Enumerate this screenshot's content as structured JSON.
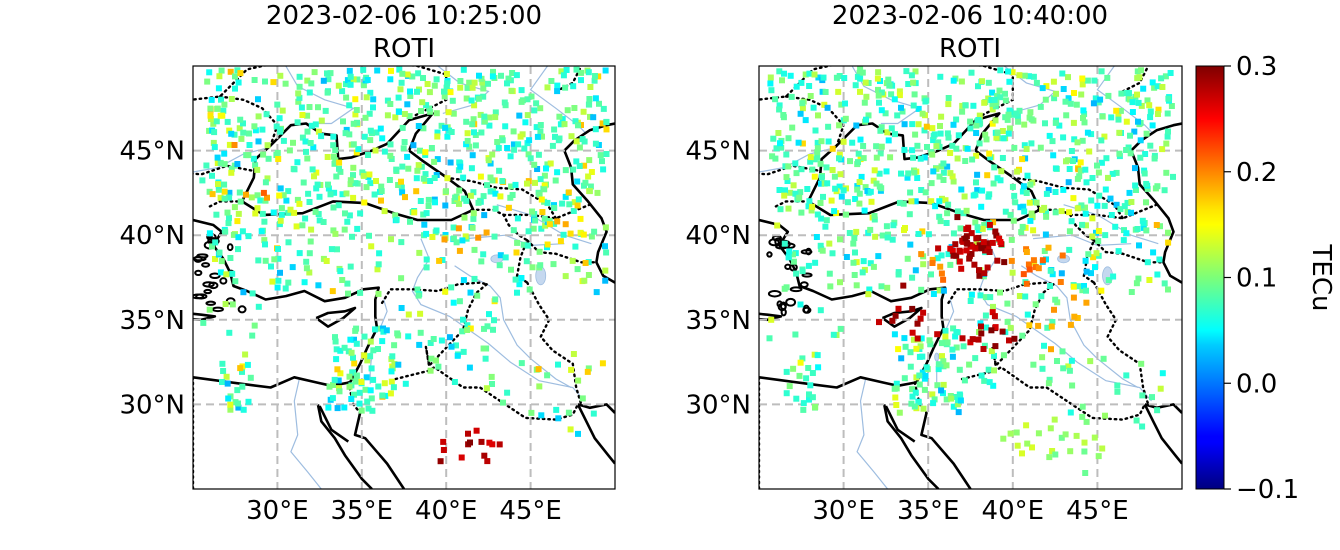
{
  "panels": [
    {
      "title_line1": "2023-02-06 10:25:00",
      "title_line2": "ROTI",
      "seed": 11,
      "hot_clusters": [
        {
          "lon": 41.6,
          "lat": 27.0,
          "n": 14,
          "value": 0.3
        },
        {
          "lon": 28.4,
          "lat": 42.8,
          "n": 4,
          "value": 0.22
        },
        {
          "lon": 46.5,
          "lat": 40.2,
          "n": 12,
          "value": 0.19
        },
        {
          "lon": 41.0,
          "lat": 39.8,
          "n": 6,
          "value": 0.2
        }
      ]
    },
    {
      "title_line1": "2023-02-06 10:40:00",
      "title_line2": "ROTI",
      "seed": 29,
      "hot_clusters": [
        {
          "lon": 37.6,
          "lat": 39.2,
          "n": 55,
          "value": 0.3
        },
        {
          "lon": 34.0,
          "lat": 35.2,
          "n": 12,
          "value": 0.3
        },
        {
          "lon": 38.4,
          "lat": 34.2,
          "n": 16,
          "value": 0.3
        },
        {
          "lon": 41.2,
          "lat": 38.2,
          "n": 14,
          "value": 0.22
        },
        {
          "lon": 43.0,
          "lat": 35.0,
          "n": 10,
          "value": 0.2
        },
        {
          "lon": 35.5,
          "lat": 38.2,
          "n": 6,
          "value": 0.22
        },
        {
          "lon": 41.0,
          "lat": 28.0,
          "n": 12,
          "value": 0.14
        },
        {
          "lon": 44.0,
          "lat": 27.5,
          "n": 12,
          "value": 0.13
        }
      ]
    }
  ],
  "map": {
    "lon_range": [
      25,
      50
    ],
    "lat_range": [
      25,
      50
    ],
    "lon_ticks": [
      30,
      35,
      40,
      45
    ],
    "lon_tick_labels": [
      "30°E",
      "35°E",
      "40°E",
      "45°E"
    ],
    "lat_ticks": [
      30,
      35,
      40,
      45
    ],
    "lat_tick_labels": [
      "30°N",
      "35°N",
      "40°N",
      "45°N"
    ],
    "gridlines": true,
    "projection": "PlateCarree"
  },
  "colorbar": {
    "label": "TECu",
    "colormap": "jet",
    "vmin": -0.1,
    "vmax": 0.3,
    "tick_labels": [
      "0.3",
      "0.2",
      "0.1",
      "0.0",
      "−0.1"
    ],
    "tick_values": [
      0.3,
      0.2,
      0.1,
      0.0,
      -0.1
    ]
  },
  "colors": {
    "coastline": "#000000",
    "border": "#000000",
    "river": "#9ebde0",
    "grid": "#bdbdbd"
  }
}
